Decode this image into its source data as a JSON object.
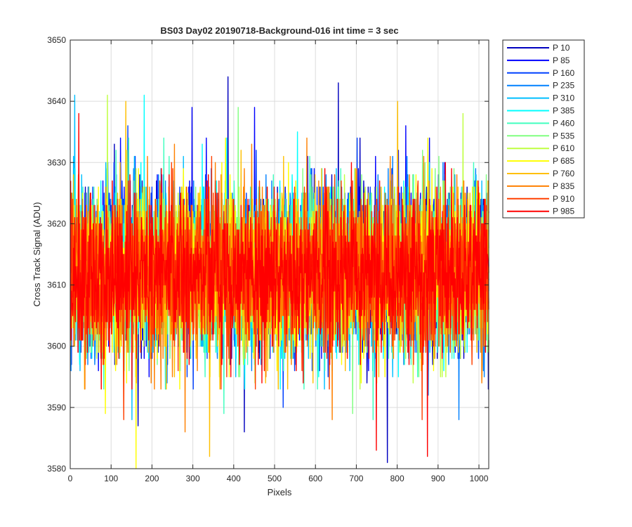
{
  "chart_data": {
    "type": "line",
    "title": "BS03 Day02 20190718-Background-016 int time = 3 sec",
    "xlabel": "Pixels",
    "ylabel": "Cross Track Signal (ADU)",
    "xlim": [
      0,
      1024
    ],
    "ylim": [
      3580,
      3650
    ],
    "xticks": [
      0,
      100,
      200,
      300,
      400,
      500,
      600,
      700,
      800,
      900,
      1000
    ],
    "yticks": [
      3580,
      3590,
      3600,
      3610,
      3620,
      3630,
      3640,
      3650
    ],
    "grid": true,
    "legend_position": "outside-top-right",
    "n_points": 1024,
    "series_summary": "Background noise traces centered near 3613 ADU, mostly within 3598-3628 ADU, with occasional spikes to about 3580 and 3644.",
    "series": [
      {
        "name": "P 10",
        "color": "#0000bf",
        "mean": 3613,
        "spikes": [
          [
            385,
            3644
          ],
          [
            655,
            3643
          ],
          [
            775,
            3581
          ],
          [
            165,
            3587
          ],
          [
            425,
            3586
          ]
        ]
      },
      {
        "name": "P 85",
        "color": "#0000ff",
        "mean": 3613,
        "spikes": [
          [
            297,
            3639
          ],
          [
            450,
            3639
          ],
          [
            820,
            3636
          ]
        ]
      },
      {
        "name": "P 160",
        "color": "#0040ff",
        "mean": 3613,
        "spikes": [
          [
            140,
            3636
          ],
          [
            520,
            3590
          ]
        ]
      },
      {
        "name": "P 235",
        "color": "#0080ff",
        "mean": 3613,
        "spikes": [
          [
            875,
            3592
          ],
          [
            950,
            3588
          ]
        ]
      },
      {
        "name": "P 310",
        "color": "#00bfff",
        "mean": 3612,
        "spikes": [
          [
            10,
            3641
          ],
          [
            150,
            3588
          ]
        ]
      },
      {
        "name": "P 385",
        "color": "#00ffff",
        "mean": 3612,
        "spikes": [
          [
            180,
            3641
          ],
          [
            555,
            3635
          ]
        ]
      },
      {
        "name": "P 460",
        "color": "#40ffbf",
        "mean": 3612,
        "spikes": [
          [
            375,
            3589
          ],
          [
            740,
            3588
          ]
        ]
      },
      {
        "name": "P 535",
        "color": "#80ff80",
        "mean": 3612,
        "spikes": [
          [
            410,
            3639
          ],
          [
            690,
            3589
          ]
        ]
      },
      {
        "name": "P 610",
        "color": "#bfff40",
        "mean": 3612,
        "spikes": [
          [
            90,
            3641
          ],
          [
            960,
            3638
          ]
        ]
      },
      {
        "name": "P 685",
        "color": "#ffff00",
        "mean": 3612,
        "spikes": [
          [
            160,
            3580
          ],
          [
            85,
            3589
          ]
        ]
      },
      {
        "name": "P 760",
        "color": "#ffbf00",
        "mean": 3612,
        "spikes": [
          [
            340,
            3582
          ],
          [
            800,
            3640
          ],
          [
            135,
            3640
          ]
        ]
      },
      {
        "name": "P 835",
        "color": "#ff8000",
        "mean": 3612,
        "spikes": [
          [
            280,
            3586
          ],
          [
            640,
            3588
          ]
        ]
      },
      {
        "name": "P 910",
        "color": "#ff4000",
        "mean": 3612,
        "spikes": [
          [
            130,
            3588
          ],
          [
            860,
            3588
          ]
        ]
      },
      {
        "name": "P 985",
        "color": "#ff0000",
        "mean": 3612,
        "spikes": [
          [
            748,
            3583
          ],
          [
            873,
            3582
          ],
          [
            20,
            3638
          ]
        ]
      }
    ]
  }
}
